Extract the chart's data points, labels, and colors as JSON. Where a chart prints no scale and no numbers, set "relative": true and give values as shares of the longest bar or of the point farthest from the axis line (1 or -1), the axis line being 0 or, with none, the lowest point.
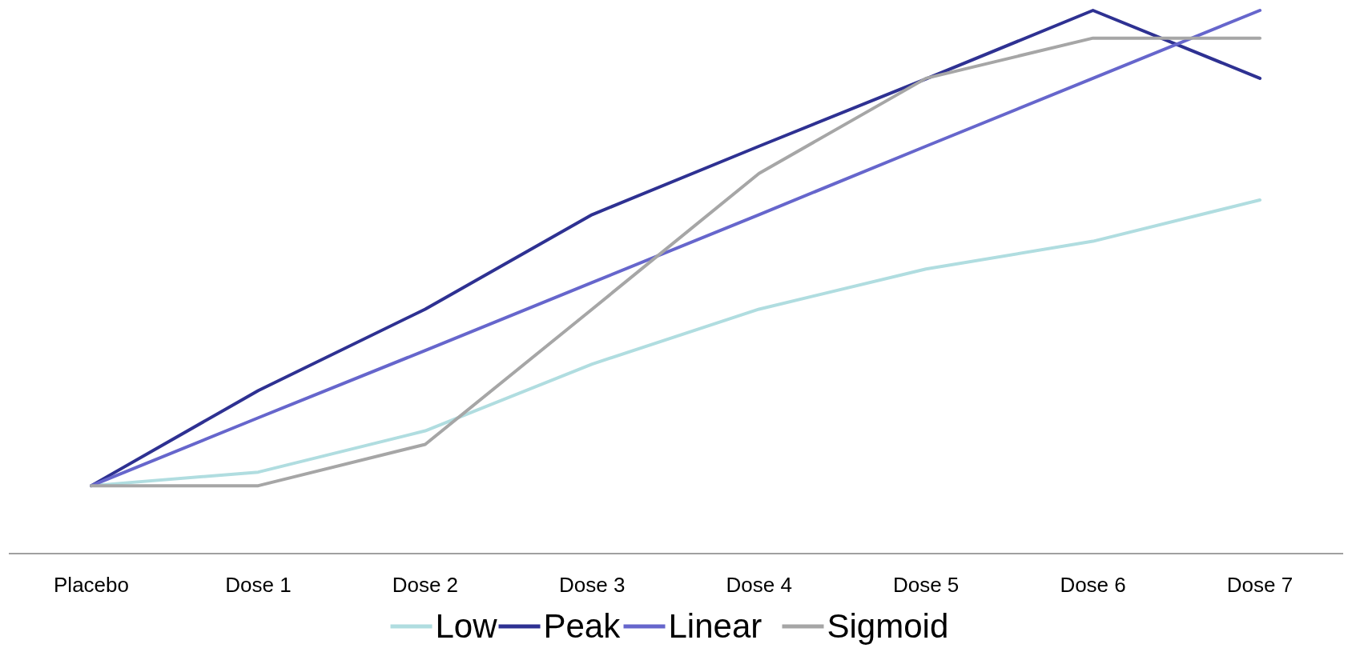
{
  "chart_data": {
    "type": "line",
    "relative": true,
    "categories": [
      "Placebo",
      "Dose 1",
      "Dose 2",
      "Dose 3",
      "Dose 4",
      "Dose 5",
      "Dose 6",
      "Dose 7"
    ],
    "series": [
      {
        "name": "Low",
        "color": "#b0dde0",
        "values": [
          0.125,
          0.15,
          0.226,
          0.349,
          0.45,
          0.524,
          0.575,
          0.651
        ]
      },
      {
        "name": "Peak",
        "color": "#2e3192",
        "values": [
          0.125,
          0.3,
          0.45,
          0.624,
          0.75,
          0.874,
          1,
          0.875
        ]
      },
      {
        "name": "Linear",
        "color": "#6666cc",
        "values": [
          0.125,
          0.25,
          0.374,
          0.499,
          0.624,
          0.75,
          0.875,
          1
        ]
      },
      {
        "name": "Sigmoid",
        "color": "#a6a6a6",
        "values": [
          0.125,
          0.125,
          0.201,
          0.45,
          0.7,
          0.875,
          0.949,
          0.949
        ]
      }
    ],
    "legend": "bottom",
    "marker": "none",
    "line_style": "solid"
  }
}
